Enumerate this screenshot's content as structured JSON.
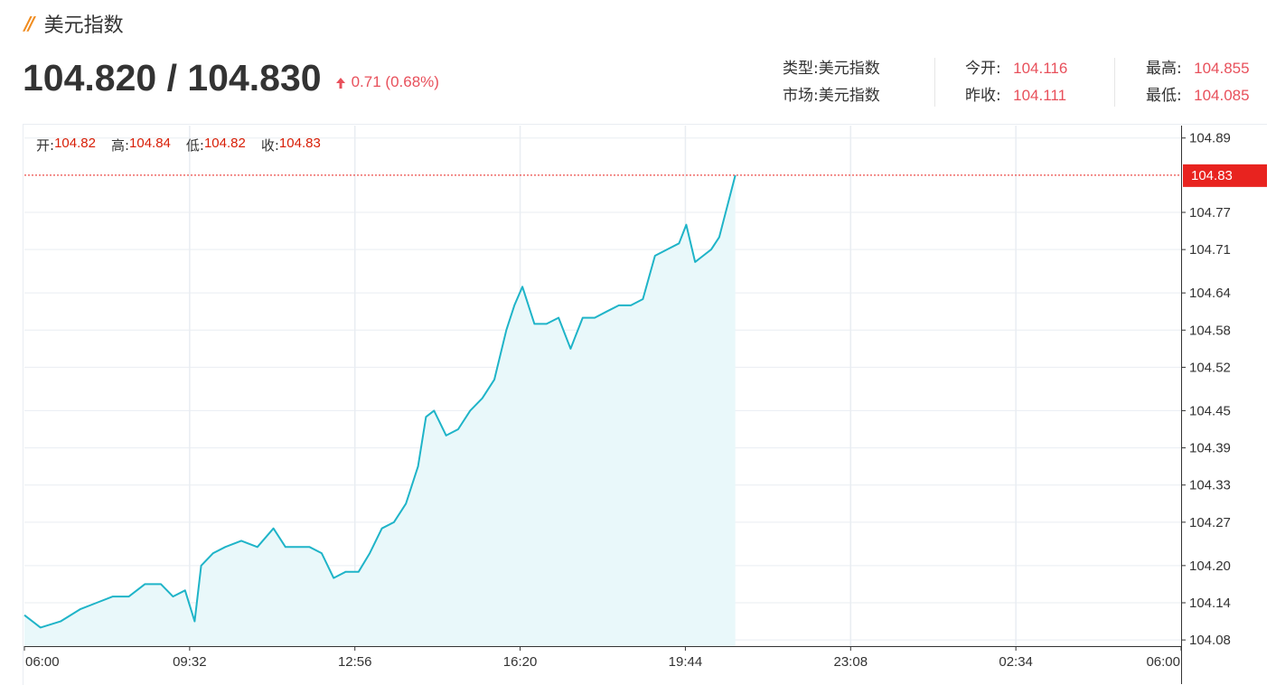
{
  "header": {
    "title": "美元指数",
    "price": "104.820 / 104.830",
    "change": "0.71 (0.68%)"
  },
  "info": {
    "type_label": "类型:",
    "type_value": "美元指数",
    "market_label": "市场:",
    "market_value": "美元指数",
    "open_label": "今开:",
    "open_value": "104.116",
    "prev_close_label": "昨收:",
    "prev_close_value": "104.111",
    "high_label": "最高:",
    "high_value": "104.855",
    "low_label": "最低:",
    "low_value": "104.085"
  },
  "ohlc": {
    "open_label": "开:",
    "open_value": "104.82",
    "high_label": "高:",
    "high_value": "104.84",
    "low_label": "低:",
    "low_value": "104.82",
    "close_label": "收:",
    "close_value": "104.83"
  },
  "colors": {
    "line": "#1fb4c8",
    "area_fill": "#e9f8fa",
    "up": "#e8505b",
    "last_price": "#e8231f",
    "grid": "#e9edf2"
  },
  "chart_data": {
    "type": "area",
    "x_ticks": [
      "06:00",
      "09:32",
      "12:56",
      "16:20",
      "19:44",
      "23:08",
      "02:34",
      "06:00"
    ],
    "y_ticks": [
      "104.89",
      "104.77",
      "104.71",
      "104.64",
      "104.58",
      "104.52",
      "104.45",
      "104.39",
      "104.33",
      "104.27",
      "104.20",
      "104.14",
      "104.08"
    ],
    "ylim": [
      104.07,
      104.91
    ],
    "last_price": 104.83,
    "last_price_label": "104.83",
    "x": [
      "06:00",
      "06:20",
      "06:45",
      "07:10",
      "07:30",
      "07:50",
      "08:10",
      "08:30",
      "08:50",
      "09:05",
      "09:20",
      "09:32",
      "09:40",
      "09:55",
      "10:10",
      "10:30",
      "10:50",
      "11:10",
      "11:25",
      "11:40",
      "11:55",
      "12:10",
      "12:25",
      "12:40",
      "12:56",
      "13:10",
      "13:25",
      "13:40",
      "13:55",
      "14:10",
      "14:20",
      "14:30",
      "14:45",
      "15:00",
      "15:15",
      "15:30",
      "15:45",
      "16:00",
      "16:10",
      "16:20",
      "16:35",
      "16:50",
      "17:05",
      "17:20",
      "17:35",
      "17:50",
      "18:05",
      "18:20",
      "18:35",
      "18:50",
      "19:05",
      "19:20",
      "19:35",
      "19:44",
      "19:55",
      "20:05",
      "20:15",
      "20:25",
      "20:35",
      "20:45"
    ],
    "y": [
      104.12,
      104.1,
      104.11,
      104.13,
      104.14,
      104.15,
      104.15,
      104.17,
      104.17,
      104.15,
      104.16,
      104.11,
      104.2,
      104.22,
      104.23,
      104.24,
      104.23,
      104.26,
      104.23,
      104.23,
      104.23,
      104.22,
      104.18,
      104.19,
      104.19,
      104.22,
      104.26,
      104.27,
      104.3,
      104.36,
      104.44,
      104.45,
      104.41,
      104.42,
      104.45,
      104.47,
      104.5,
      104.58,
      104.62,
      104.65,
      104.59,
      104.59,
      104.6,
      104.55,
      104.6,
      104.6,
      104.61,
      104.62,
      104.62,
      104.63,
      104.7,
      104.71,
      104.72,
      104.75,
      104.69,
      104.7,
      104.71,
      104.73,
      104.78,
      104.83
    ]
  }
}
